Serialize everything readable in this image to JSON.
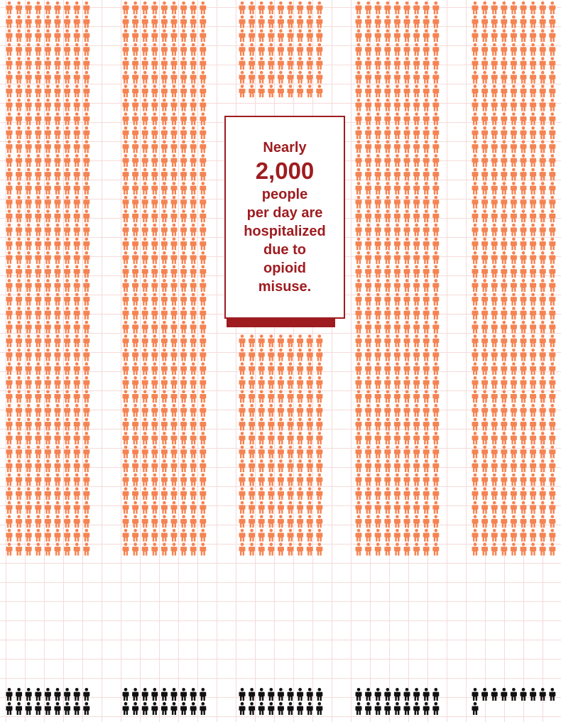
{
  "colors": {
    "figure_orange": "#f58453",
    "figure_black": "#111111",
    "accent_red": "#9e1c20",
    "grid": "#f6dada",
    "background": "#ffffff"
  },
  "icons": {
    "person": "person-icon"
  },
  "callout": {
    "lead": "Nearly",
    "figure": "2,000",
    "body": "people\nper day are\nhospitalized\ndue to\nopioid\nmisuse."
  },
  "chart_data": {
    "type": "pictograph",
    "unit": "person",
    "groups": [
      {
        "highlighted": 360,
        "base": 18
      },
      {
        "highlighted": 360,
        "base": 18
      },
      {
        "highlighted": 360,
        "base": 18
      },
      {
        "highlighted": 360,
        "base": 18
      },
      {
        "highlighted": 360,
        "base": 10
      }
    ]
  }
}
